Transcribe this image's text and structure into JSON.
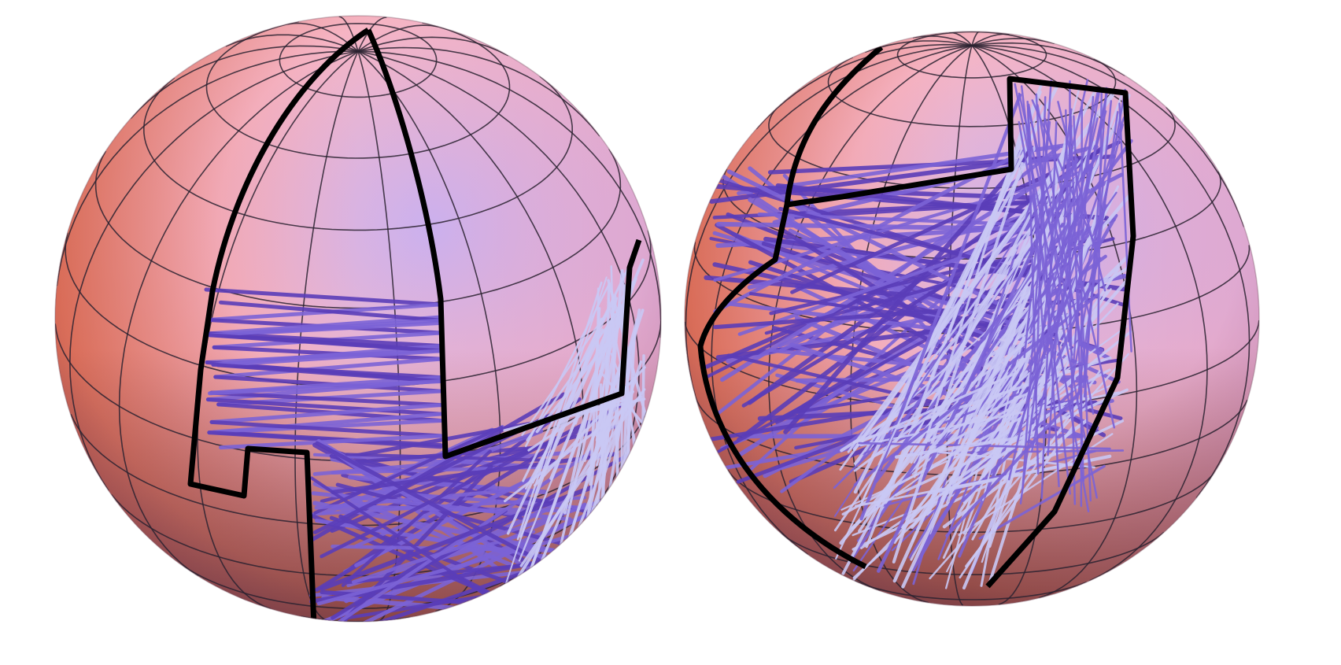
{
  "figure": {
    "panel_count": 2,
    "panels": [
      {
        "name": "left-sphere",
        "view": "front-north"
      },
      {
        "name": "right-sphere",
        "view": "rotated"
      }
    ],
    "colors": {
      "sphere_warm": "#e07a62",
      "sphere_pink": "#f6b5c4",
      "sphere_lavender": "#c9b2f2",
      "sphere_shadow": "#7a3d4f",
      "trajectory_dark": "#5a3db8",
      "trajectory_mid": "#7b63d6",
      "trajectory_light": "#c9c8f4",
      "boundary": "#000000",
      "grid": "#2a2230",
      "background": "#ffffff"
    }
  }
}
